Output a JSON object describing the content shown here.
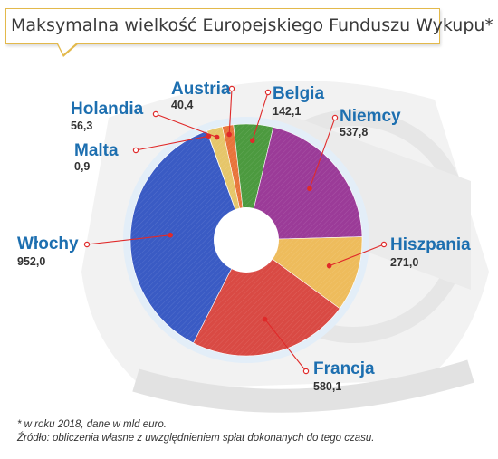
{
  "title": "Maksymalna wielkość Europejskiego Funduszu Wykupu*",
  "footnotes": {
    "note": "* w  roku 2018, dane w mld euro.",
    "source": "Źródło: obliczenia własne z uwzględnieniem spłat dokonanych do tego czasu."
  },
  "labels": [
    {
      "name": "Austria",
      "value": "40,4"
    },
    {
      "name": "Belgia",
      "value": "142,1"
    },
    {
      "name": "Niemcy",
      "value": "537,8"
    },
    {
      "name": "Hiszpania",
      "value": "271,0"
    },
    {
      "name": "Francja",
      "value": "580,1"
    },
    {
      "name": "Włochy",
      "value": "952,0"
    },
    {
      "name": "Malta",
      "value": "0,9"
    },
    {
      "name": "Holandia",
      "value": "56,3"
    }
  ],
  "chart_data": {
    "type": "pie",
    "title": "Maksymalna wielkość Europejskiego Funduszu Wykupu*",
    "unit": "mld euro",
    "categories": [
      "Austria",
      "Belgia",
      "Niemcy",
      "Hiszpania",
      "Francja",
      "Włochy",
      "Malta",
      "Holandia"
    ],
    "values": [
      40.4,
      142.1,
      537.8,
      271.0,
      580.1,
      952.0,
      0.9,
      56.3
    ],
    "colors": [
      "#e8743b",
      "#4c9a3f",
      "#9b3b98",
      "#eebc5c",
      "#d94a44",
      "#3a5bc4",
      "#3a8fd0",
      "#e6c66a"
    ],
    "leader_color": "#e02a2a"
  }
}
